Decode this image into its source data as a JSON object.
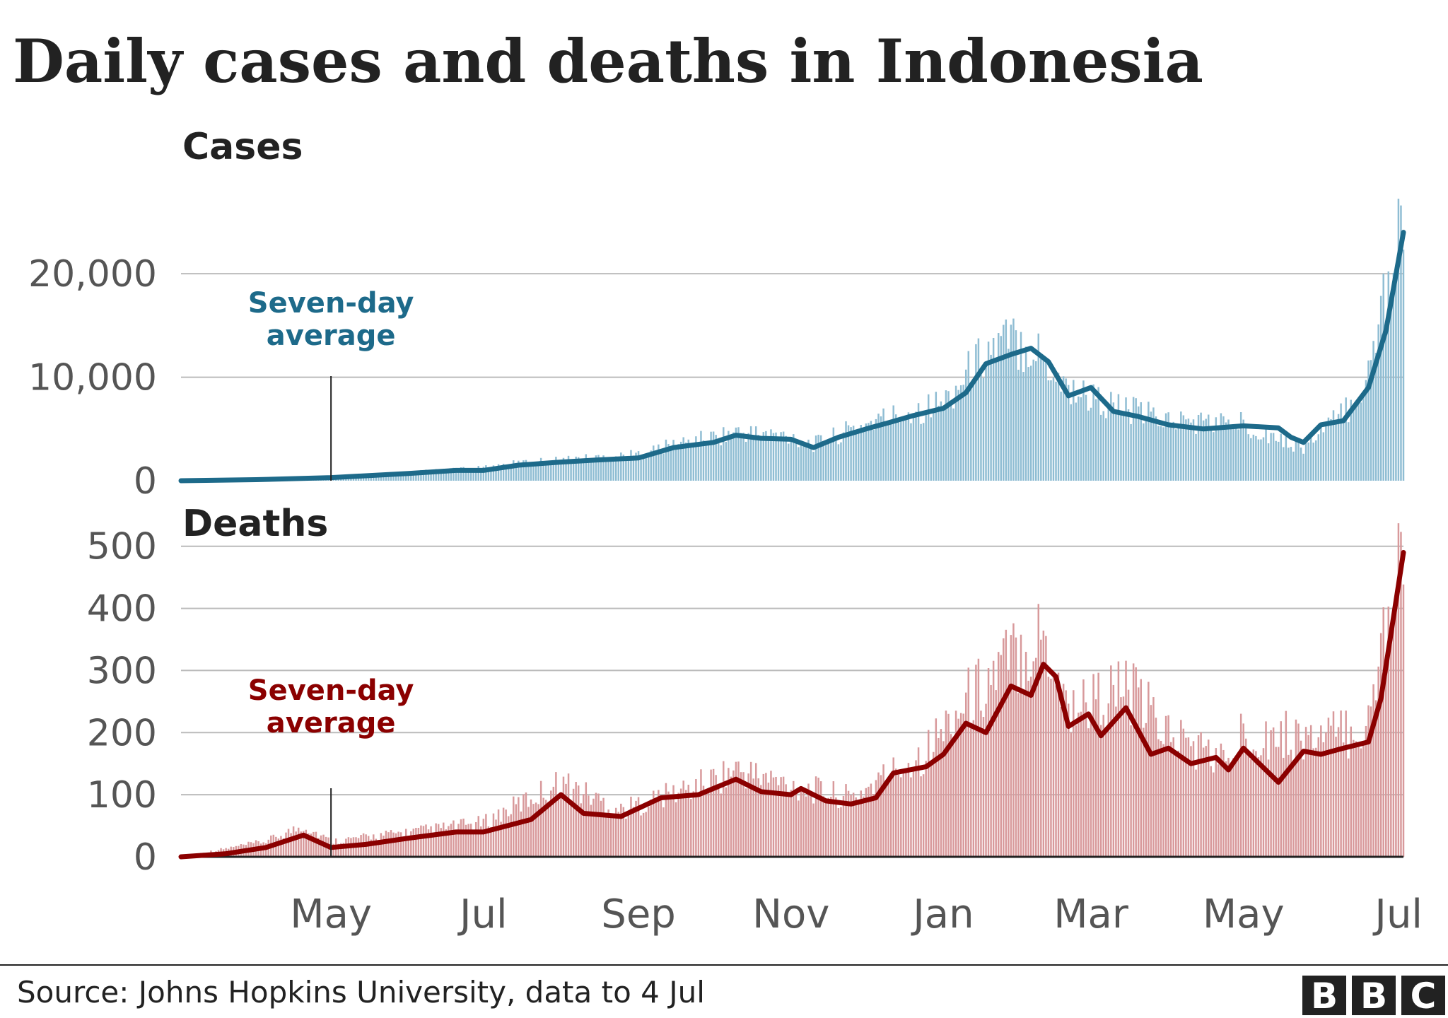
{
  "title": "Daily cases and deaths in Indonesia",
  "source": "Source: Johns Hopkins University, data to 4 Jul",
  "logo": [
    "B",
    "B",
    "C"
  ],
  "colors": {
    "cases_line": "#1d6a8a",
    "cases_bar": "#8fbdd3",
    "deaths_line": "#8b0000",
    "deaths_bar": "#d8999b",
    "grid": "#bbbbbb",
    "axis": "#222222"
  },
  "chart_data": [
    {
      "type": "bar",
      "panel_title": "Cases",
      "overlay": "line",
      "annotation": {
        "lines": [
          "Seven-day",
          "average"
        ],
        "x": "2020-05-01"
      },
      "x_range": [
        "2020-03-02",
        "2021-07-04"
      ],
      "yticks": [
        "0",
        "10,000",
        "20,000"
      ],
      "ytick_values": [
        0,
        10000,
        20000
      ],
      "ylim": [
        0,
        28000
      ],
      "xticks": [
        {
          "label": "May",
          "date": "2020-05-01"
        },
        {
          "label": "Jul",
          "date": "2020-07-01"
        },
        {
          "label": "Sep",
          "date": "2020-09-01"
        },
        {
          "label": "Nov",
          "date": "2020-11-01"
        },
        {
          "label": "Jan",
          "date": "2021-01-01"
        },
        {
          "label": "Mar",
          "date": "2021-03-01"
        },
        {
          "label": "May",
          "date": "2021-05-01"
        },
        {
          "label": "Jul",
          "date": "2021-07-01"
        }
      ],
      "series": [
        {
          "role": "seven_day_average",
          "points": [
            [
              "2020-03-02",
              0
            ],
            [
              "2020-04-01",
              100
            ],
            [
              "2020-05-01",
              300
            ],
            [
              "2020-06-01",
              700
            ],
            [
              "2020-06-20",
              1000
            ],
            [
              "2020-07-01",
              1000
            ],
            [
              "2020-07-15",
              1500
            ],
            [
              "2020-08-01",
              1800
            ],
            [
              "2020-08-15",
              2000
            ],
            [
              "2020-09-01",
              2200
            ],
            [
              "2020-09-15",
              3200
            ],
            [
              "2020-10-01",
              3700
            ],
            [
              "2020-10-10",
              4400
            ],
            [
              "2020-10-20",
              4100
            ],
            [
              "2020-11-01",
              4000
            ],
            [
              "2020-11-10",
              3200
            ],
            [
              "2020-11-20",
              4200
            ],
            [
              "2020-12-01",
              5000
            ],
            [
              "2020-12-10",
              5600
            ],
            [
              "2020-12-20",
              6300
            ],
            [
              "2021-01-01",
              7000
            ],
            [
              "2021-01-10",
              8500
            ],
            [
              "2021-01-18",
              11300
            ],
            [
              "2021-01-28",
              12200
            ],
            [
              "2021-02-05",
              12800
            ],
            [
              "2021-02-12",
              11500
            ],
            [
              "2021-02-20",
              8200
            ],
            [
              "2021-03-01",
              9000
            ],
            [
              "2021-03-10",
              6700
            ],
            [
              "2021-03-20",
              6200
            ],
            [
              "2021-04-01",
              5400
            ],
            [
              "2021-04-15",
              5000
            ],
            [
              "2021-05-01",
              5300
            ],
            [
              "2021-05-15",
              5100
            ],
            [
              "2021-05-20",
              4200
            ],
            [
              "2021-05-25",
              3700
            ],
            [
              "2021-06-01",
              5400
            ],
            [
              "2021-06-10",
              5800
            ],
            [
              "2021-06-20",
              9000
            ],
            [
              "2021-06-27",
              14500
            ],
            [
              "2021-07-04",
              24000
            ]
          ]
        },
        {
          "role": "daily",
          "points": [
            [
              "2020-03-02",
              0
            ],
            [
              "2020-04-01",
              150
            ],
            [
              "2020-05-01",
              400
            ],
            [
              "2020-06-01",
              800
            ],
            [
              "2020-07-01",
              1200
            ],
            [
              "2020-07-15",
              1700
            ],
            [
              "2020-08-01",
              2000
            ],
            [
              "2020-09-01",
              2500
            ],
            [
              "2020-09-15",
              3500
            ],
            [
              "2020-10-01",
              4200
            ],
            [
              "2020-10-10",
              4700
            ],
            [
              "2020-11-01",
              4300
            ],
            [
              "2020-11-10",
              3500
            ],
            [
              "2020-12-01",
              5500
            ],
            [
              "2020-12-20",
              6800
            ],
            [
              "2021-01-01",
              7500
            ],
            [
              "2021-01-18",
              12500
            ],
            [
              "2021-01-28",
              13500
            ],
            [
              "2021-02-05",
              13200
            ],
            [
              "2021-02-20",
              9000
            ],
            [
              "2021-03-10",
              7200
            ],
            [
              "2021-04-01",
              5800
            ],
            [
              "2021-05-01",
              5500
            ],
            [
              "2021-05-25",
              3200
            ],
            [
              "2021-06-10",
              6500
            ],
            [
              "2021-06-20",
              10000
            ],
            [
              "2021-06-27",
              19000
            ],
            [
              "2021-07-04",
              27500
            ]
          ]
        }
      ]
    },
    {
      "type": "bar",
      "panel_title": "Deaths",
      "overlay": "line",
      "annotation": {
        "lines": [
          "Seven-day",
          "average"
        ],
        "x": "2020-05-01"
      },
      "x_range": [
        "2020-03-02",
        "2021-07-04"
      ],
      "yticks": [
        "0",
        "100",
        "200",
        "300",
        "400",
        "500"
      ],
      "ytick_values": [
        0,
        100,
        200,
        300,
        400,
        500
      ],
      "ylim": [
        0,
        560
      ],
      "xticks": [
        {
          "label": "May",
          "date": "2020-05-01"
        },
        {
          "label": "Jul",
          "date": "2020-07-01"
        },
        {
          "label": "Sep",
          "date": "2020-09-01"
        },
        {
          "label": "Nov",
          "date": "2020-11-01"
        },
        {
          "label": "Jan",
          "date": "2021-01-01"
        },
        {
          "label": "Mar",
          "date": "2021-03-01"
        },
        {
          "label": "May",
          "date": "2021-05-01"
        },
        {
          "label": "Jul",
          "date": "2021-07-01"
        }
      ],
      "series": [
        {
          "role": "seven_day_average",
          "points": [
            [
              "2020-03-02",
              0
            ],
            [
              "2020-03-20",
              5
            ],
            [
              "2020-04-05",
              15
            ],
            [
              "2020-04-20",
              35
            ],
            [
              "2020-05-01",
              15
            ],
            [
              "2020-05-15",
              20
            ],
            [
              "2020-06-01",
              30
            ],
            [
              "2020-06-20",
              40
            ],
            [
              "2020-07-01",
              40
            ],
            [
              "2020-07-20",
              60
            ],
            [
              "2020-08-01",
              100
            ],
            [
              "2020-08-10",
              70
            ],
            [
              "2020-08-25",
              65
            ],
            [
              "2020-09-10",
              95
            ],
            [
              "2020-09-25",
              100
            ],
            [
              "2020-10-10",
              125
            ],
            [
              "2020-10-20",
              105
            ],
            [
              "2020-11-01",
              100
            ],
            [
              "2020-11-05",
              110
            ],
            [
              "2020-11-15",
              90
            ],
            [
              "2020-11-25",
              85
            ],
            [
              "2020-12-05",
              95
            ],
            [
              "2020-12-12",
              135
            ],
            [
              "2020-12-25",
              145
            ],
            [
              "2021-01-01",
              165
            ],
            [
              "2021-01-10",
              215
            ],
            [
              "2021-01-18",
              200
            ],
            [
              "2021-01-28",
              275
            ],
            [
              "2021-02-05",
              260
            ],
            [
              "2021-02-10",
              310
            ],
            [
              "2021-02-15",
              290
            ],
            [
              "2021-02-20",
              210
            ],
            [
              "2021-02-28",
              230
            ],
            [
              "2021-03-05",
              195
            ],
            [
              "2021-03-15",
              240
            ],
            [
              "2021-03-25",
              165
            ],
            [
              "2021-04-01",
              175
            ],
            [
              "2021-04-10",
              150
            ],
            [
              "2021-04-20",
              160
            ],
            [
              "2021-04-25",
              140
            ],
            [
              "2021-05-01",
              175
            ],
            [
              "2021-05-15",
              120
            ],
            [
              "2021-05-25",
              170
            ],
            [
              "2021-06-01",
              165
            ],
            [
              "2021-06-10",
              175
            ],
            [
              "2021-06-20",
              185
            ],
            [
              "2021-06-25",
              255
            ],
            [
              "2021-07-04",
              490
            ]
          ]
        },
        {
          "role": "daily",
          "points": [
            [
              "2020-03-02",
              0
            ],
            [
              "2020-04-05",
              25
            ],
            [
              "2020-04-20",
              50
            ],
            [
              "2020-05-01",
              25
            ],
            [
              "2020-06-01",
              40
            ],
            [
              "2020-07-01",
              55
            ],
            [
              "2020-08-01",
              120
            ],
            [
              "2020-08-25",
              75
            ],
            [
              "2020-09-25",
              115
            ],
            [
              "2020-10-10",
              140
            ],
            [
              "2020-11-01",
              115
            ],
            [
              "2020-11-25",
              95
            ],
            [
              "2020-12-25",
              170
            ],
            [
              "2021-01-10",
              250
            ],
            [
              "2021-01-28",
              320
            ],
            [
              "2021-02-10",
              360
            ],
            [
              "2021-02-20",
              240
            ],
            [
              "2021-03-15",
              270
            ],
            [
              "2021-04-01",
              200
            ],
            [
              "2021-04-25",
              150
            ],
            [
              "2021-05-01",
              200
            ],
            [
              "2021-06-01",
              190
            ],
            [
              "2021-06-20",
              210
            ],
            [
              "2021-06-27",
              380
            ],
            [
              "2021-07-04",
              540
            ]
          ]
        }
      ]
    }
  ]
}
